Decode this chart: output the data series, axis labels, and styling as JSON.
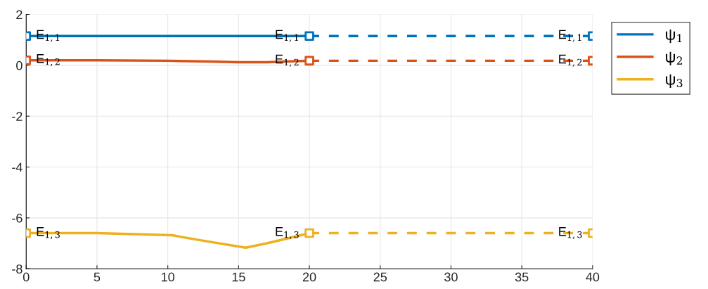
{
  "chart_data": {
    "type": "line",
    "xlim": [
      0,
      40
    ],
    "ylim": [
      -8,
      2
    ],
    "xticks": [
      0,
      5,
      10,
      15,
      20,
      25,
      30,
      35,
      40
    ],
    "yticks": [
      -8,
      -6,
      -4,
      -2,
      0,
      2
    ],
    "grid": true,
    "legend": "top right",
    "line_style": "solid",
    "marker": "none",
    "series": [
      {
        "name": "ψ$_{1}$",
        "color": "#0072bd",
        "x": [
          0,
          5,
          10,
          15,
          20
        ],
        "values": [
          1.15,
          1.15,
          1.15,
          1.15,
          1.15
        ]
      },
      {
        "name": "ψ$_{2}$",
        "color": "#d95319",
        "x": [
          0,
          5,
          10,
          13,
          15,
          17,
          20
        ],
        "values": [
          0.2,
          0.2,
          0.18,
          0.15,
          0.12,
          0.12,
          0.18
        ]
      },
      {
        "name": "ψ$_{3}$",
        "color": "#edb120",
        "x": [
          0,
          5,
          10.3,
          12,
          15.5,
          17,
          20
        ],
        "values": [
          -6.6,
          -6.6,
          -6.68,
          -6.85,
          -7.17,
          -7.0,
          -6.6
        ]
      },
      {
        "color": "#0072bd",
        "x": [
          20,
          40
        ],
        "values": [
          1.15,
          1.15
        ],
        "line_style": "dashed"
      },
      {
        "color": "#d95319",
        "x": [
          20,
          40
        ],
        "values": [
          0.18,
          0.18
        ],
        "line_style": "dashed"
      },
      {
        "color": "#edb120",
        "x": [
          20,
          40
        ],
        "values": [
          -6.6,
          -6.6
        ],
        "line_style": "dashed"
      },
      {
        "type": "scatter",
        "marker": "square",
        "color": "#0072bd",
        "x": [
          0,
          20,
          40
        ],
        "values": [
          1.15,
          1.15,
          1.15
        ]
      },
      {
        "type": "scatter",
        "marker": "square",
        "color": "#d95319",
        "x": [
          0,
          20,
          40
        ],
        "values": [
          0.2,
          0.18,
          0.18
        ]
      },
      {
        "type": "scatter",
        "marker": "square",
        "color": "#edb120",
        "x": [
          0,
          20,
          40
        ],
        "values": [
          -6.6,
          -6.6,
          -6.6
        ]
      }
    ],
    "annotations": [
      {
        "text": "E$_{1,1}$",
        "x": 0,
        "y": 1.15
      },
      {
        "text": "E$_{1,1}$",
        "x": 20,
        "y": 1.15
      },
      {
        "text": "E$_{1,1}$",
        "x": 40,
        "y": 1.15
      },
      {
        "text": "E$_{1,2}$",
        "x": 0,
        "y": 0.2
      },
      {
        "text": "E$_{1,2}$",
        "x": 20,
        "y": 0.18
      },
      {
        "text": "E$_{1,2}$",
        "x": 40,
        "y": 0.18
      },
      {
        "text": "E$_{1,3}$",
        "x": 0,
        "y": -6.6
      },
      {
        "text": "E$_{1,3}$",
        "x": 20,
        "y": -6.6
      },
      {
        "text": "E$_{1,3}$",
        "x": 40,
        "y": -6.6
      }
    ]
  }
}
